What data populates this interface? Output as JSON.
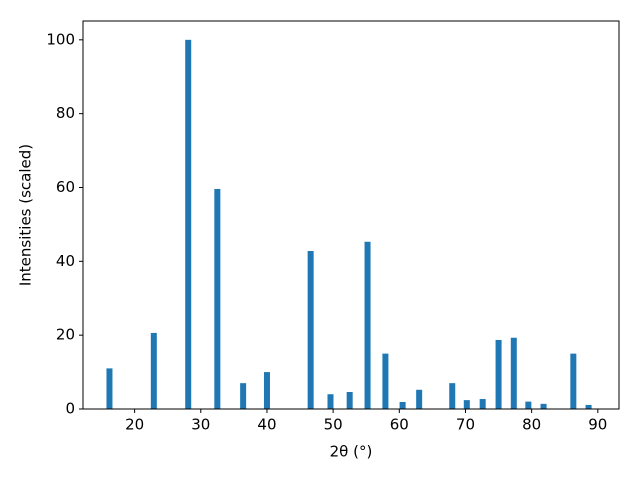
{
  "chart_data": {
    "type": "bar",
    "x_label": "2θ (°)",
    "y_label": "Intensities (scaled)",
    "x": [
      16.2,
      22.9,
      28.1,
      32.5,
      36.4,
      40.0,
      46.6,
      49.6,
      52.5,
      55.2,
      57.9,
      60.5,
      63.0,
      68.0,
      70.2,
      72.6,
      75.0,
      77.3,
      79.5,
      81.8,
      86.3,
      88.6
    ],
    "values": [
      11.0,
      20.6,
      100,
      59.6,
      7.0,
      10.0,
      42.8,
      4.0,
      4.6,
      45.3,
      15.0,
      1.9,
      5.2,
      7.0,
      2.4,
      2.7,
      18.7,
      19.3,
      2.0,
      1.4,
      15.0,
      1.1
    ],
    "color": "#1f77b4",
    "xlim": [
      12.2,
      93.2
    ],
    "ylim": [
      0,
      105.1
    ],
    "xticks": [
      20,
      30,
      40,
      50,
      60,
      70,
      80,
      90
    ],
    "yticks": [
      0,
      20,
      40,
      60,
      80,
      100
    ],
    "grid": false
  }
}
